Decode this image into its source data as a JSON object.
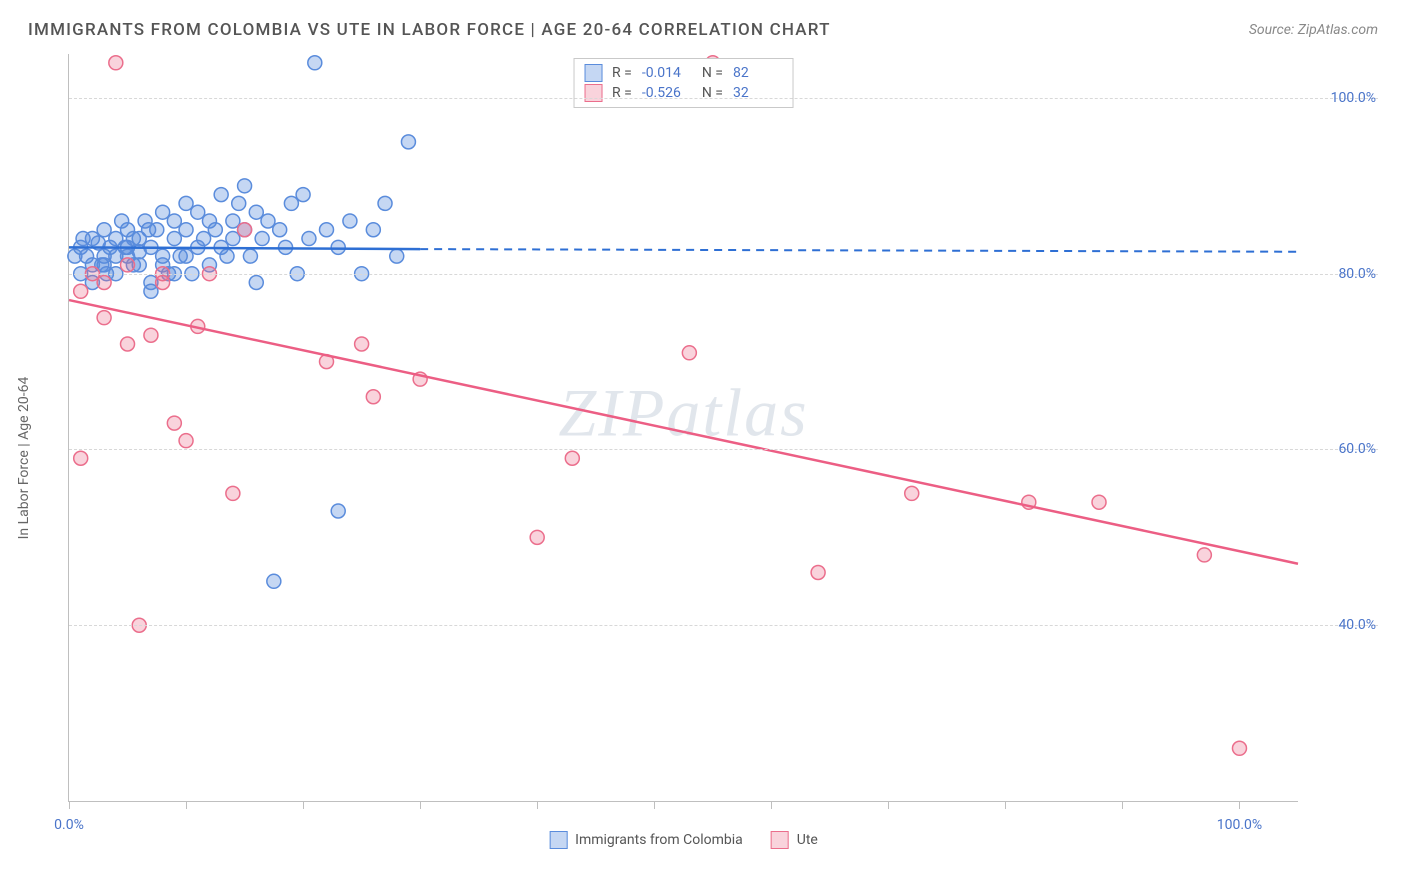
{
  "title": "IMMIGRANTS FROM COLOMBIA VS UTE IN LABOR FORCE | AGE 20-64 CORRELATION CHART",
  "source": "Source: ZipAtlas.com",
  "watermark": "ZIPatlas",
  "y_axis_title": "In Labor Force | Age 20-64",
  "chart": {
    "type": "scatter",
    "background_color": "#ffffff",
    "grid_color": "#d8d8d8",
    "axis_color": "#bfbfbf",
    "xlim": [
      0,
      105
    ],
    "ylim": [
      20,
      105
    ],
    "x_ticks": [
      0,
      10,
      20,
      30,
      40,
      50,
      60,
      70,
      80,
      90,
      100
    ],
    "x_tick_labels": {
      "0": "0.0%",
      "100": "100.0%"
    },
    "y_ticks": [
      40,
      60,
      80,
      100
    ],
    "y_tick_labels": {
      "40": "40.0%",
      "60": "60.0%",
      "80": "80.0%",
      "100": "100.0%"
    },
    "marker_radius": 7,
    "marker_stroke_width": 1.5,
    "line_width": 2.5,
    "series": [
      {
        "name": "Immigrants from Colombia",
        "fill_color": "rgba(90,140,220,0.35)",
        "stroke_color": "#5a8cdc",
        "line_color": "#2e6fd4",
        "reg_x": [
          0,
          30
        ],
        "reg_y": [
          83,
          82.8
        ],
        "dash_x": [
          30,
          105
        ],
        "dash_y": [
          82.8,
          82.5
        ],
        "points": [
          [
            1,
            83
          ],
          [
            1.5,
            82
          ],
          [
            2,
            84
          ],
          [
            2,
            81
          ],
          [
            2.5,
            83.5
          ],
          [
            3,
            82
          ],
          [
            3,
            85
          ],
          [
            3.5,
            83
          ],
          [
            4,
            84
          ],
          [
            4,
            82
          ],
          [
            4.5,
            86
          ],
          [
            5,
            83
          ],
          [
            5,
            85
          ],
          [
            5.5,
            81
          ],
          [
            6,
            84
          ],
          [
            6,
            82.5
          ],
          [
            6.5,
            86
          ],
          [
            7,
            83
          ],
          [
            7,
            78
          ],
          [
            7.5,
            85
          ],
          [
            8,
            82
          ],
          [
            8,
            87
          ],
          [
            8.5,
            80
          ],
          [
            9,
            84
          ],
          [
            9,
            86
          ],
          [
            9.5,
            82
          ],
          [
            10,
            85
          ],
          [
            10,
            88
          ],
          [
            10.5,
            80
          ],
          [
            11,
            83
          ],
          [
            11,
            87
          ],
          [
            11.5,
            84
          ],
          [
            12,
            86
          ],
          [
            12,
            81
          ],
          [
            12.5,
            85
          ],
          [
            13,
            83
          ],
          [
            13,
            89
          ],
          [
            13.5,
            82
          ],
          [
            14,
            86
          ],
          [
            14,
            84
          ],
          [
            14.5,
            88
          ],
          [
            15,
            85
          ],
          [
            15,
            90
          ],
          [
            15.5,
            82
          ],
          [
            16,
            87
          ],
          [
            16,
            79
          ],
          [
            16.5,
            84
          ],
          [
            17,
            86
          ],
          [
            17.5,
            45
          ],
          [
            18,
            85
          ],
          [
            18.5,
            83
          ],
          [
            19,
            88
          ],
          [
            19.5,
            80
          ],
          [
            20,
            89
          ],
          [
            20.5,
            84
          ],
          [
            21,
            104
          ],
          [
            22,
            85
          ],
          [
            23,
            83
          ],
          [
            24,
            86
          ],
          [
            25,
            80
          ],
          [
            26,
            85
          ],
          [
            27,
            88
          ],
          [
            28,
            82
          ],
          [
            29,
            95
          ],
          [
            23,
            53
          ],
          [
            1,
            80
          ],
          [
            2,
            79
          ],
          [
            3,
            81
          ],
          [
            4,
            80
          ],
          [
            5,
            82
          ],
          [
            6,
            81
          ],
          [
            7,
            79
          ],
          [
            8,
            81
          ],
          [
            9,
            80
          ],
          [
            10,
            82
          ],
          [
            0.5,
            82
          ],
          [
            1.2,
            84
          ],
          [
            2.8,
            81
          ],
          [
            3.2,
            80
          ],
          [
            4.8,
            83
          ],
          [
            5.5,
            84
          ],
          [
            6.8,
            85
          ]
        ]
      },
      {
        "name": "Ute",
        "fill_color": "rgba(235,110,140,0.30)",
        "stroke_color": "#eb6e8c",
        "line_color": "#ec5e84",
        "reg_x": [
          0,
          105
        ],
        "reg_y": [
          77,
          47
        ],
        "points": [
          [
            1,
            78
          ],
          [
            2,
            80
          ],
          [
            3,
            79
          ],
          [
            4,
            104
          ],
          [
            5,
            72
          ],
          [
            5,
            81
          ],
          [
            6,
            40
          ],
          [
            7,
            73
          ],
          [
            8,
            80
          ],
          [
            9,
            63
          ],
          [
            10,
            61
          ],
          [
            11,
            74
          ],
          [
            12,
            80
          ],
          [
            14,
            55
          ],
          [
            15,
            85
          ],
          [
            22,
            70
          ],
          [
            25,
            72
          ],
          [
            26,
            66
          ],
          [
            30,
            68
          ],
          [
            40,
            50
          ],
          [
            43,
            59
          ],
          [
            53,
            71
          ],
          [
            55,
            104
          ],
          [
            64,
            46
          ],
          [
            72,
            55
          ],
          [
            82,
            54
          ],
          [
            88,
            54
          ],
          [
            97,
            48
          ],
          [
            100,
            26
          ],
          [
            1,
            59
          ],
          [
            3,
            75
          ],
          [
            8,
            79
          ]
        ]
      }
    ],
    "legend_top": {
      "rows": [
        {
          "swatch_fill": "rgba(90,140,220,0.35)",
          "swatch_stroke": "#5a8cdc",
          "r_label": "R = ",
          "r": "-0.014",
          "n_label": "N = ",
          "n": "82"
        },
        {
          "swatch_fill": "rgba(235,110,140,0.30)",
          "swatch_stroke": "#eb6e8c",
          "r_label": "R = ",
          "r": "-0.526",
          "n_label": "N = ",
          "n": "32"
        }
      ]
    },
    "legend_bottom": [
      {
        "swatch_fill": "rgba(90,140,220,0.35)",
        "swatch_stroke": "#5a8cdc",
        "label": "Immigrants from Colombia"
      },
      {
        "swatch_fill": "rgba(235,110,140,0.30)",
        "swatch_stroke": "#eb6e8c",
        "label": "Ute"
      }
    ]
  }
}
